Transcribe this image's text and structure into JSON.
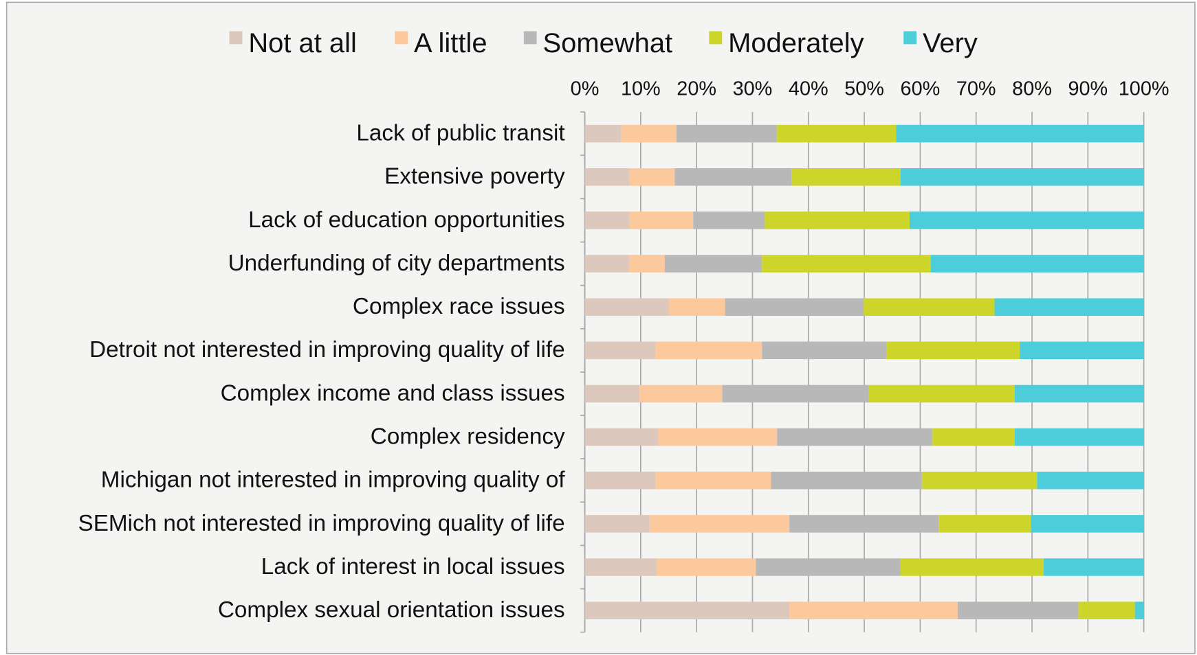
{
  "chart_data": {
    "type": "bar",
    "orientation": "horizontal",
    "stacked": true,
    "legend": "top",
    "grid": true,
    "categories": [
      "Lack of public transit",
      "Extensive poverty",
      "Lack of education opportunities",
      "Underfunding of city departments",
      "Complex race issues",
      "Detroit not interested in improving quality of life",
      "Complex income and class issues",
      "Complex residency",
      "Michigan not interested in improving quality of",
      "SEMich not interested in improving quality of life",
      "Lack of interest in local issues",
      "Complex sexual orientation issues"
    ],
    "series": [
      {
        "name": "Not at all",
        "color": "#dcc8bc",
        "values": [
          6.5,
          8.0,
          8.0,
          7.9,
          15.0,
          12.7,
          9.8,
          13.1,
          12.7,
          11.6,
          12.8,
          36.6
        ]
      },
      {
        "name": "A little",
        "color": "#fbc99c",
        "values": [
          9.9,
          8.1,
          11.4,
          6.4,
          10.1,
          19.0,
          14.8,
          21.3,
          20.6,
          25.0,
          17.8,
          30.1
        ]
      },
      {
        "name": "Somewhat",
        "color": "#b8b8b8",
        "values": [
          18.0,
          20.9,
          12.8,
          17.4,
          24.8,
          22.3,
          26.2,
          27.8,
          27.0,
          26.7,
          25.9,
          21.6
        ]
      },
      {
        "name": "Moderately",
        "color": "#cdd52a",
        "values": [
          21.3,
          19.5,
          25.9,
          30.2,
          23.4,
          23.8,
          26.1,
          14.7,
          20.6,
          16.5,
          25.6,
          10.1
        ]
      },
      {
        "name": "Very",
        "color": "#4ccdd9",
        "values": [
          44.3,
          43.5,
          41.9,
          38.1,
          26.7,
          22.2,
          23.1,
          23.1,
          19.1,
          20.2,
          17.9,
          1.6
        ]
      }
    ],
    "xlim": [
      0,
      100
    ],
    "xticks": [
      {
        "value": 0,
        "label": "0%"
      },
      {
        "value": 10,
        "label": "10%"
      },
      {
        "value": 20,
        "label": "20%"
      },
      {
        "value": 30,
        "label": "30%"
      },
      {
        "value": 40,
        "label": "40%"
      },
      {
        "value": 50,
        "label": "50%"
      },
      {
        "value": 60,
        "label": "60%"
      },
      {
        "value": 70,
        "label": "70%"
      },
      {
        "value": 80,
        "label": "80%"
      },
      {
        "value": 90,
        "label": "90%"
      },
      {
        "value": 100,
        "label": "100%"
      }
    ]
  }
}
